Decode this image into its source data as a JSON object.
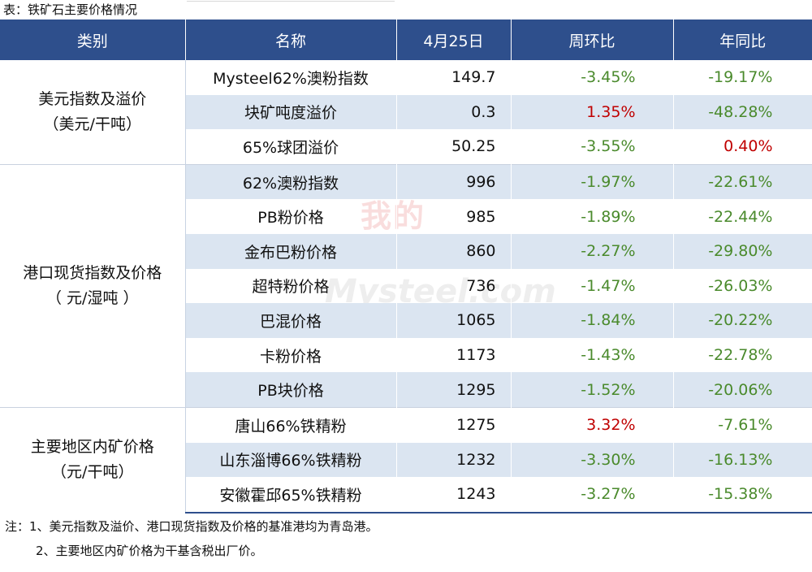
{
  "caption": "表：铁矿石主要价格情况",
  "headers": [
    "类别",
    "名称",
    "4月25日",
    "周环比",
    "年同比"
  ],
  "groups": [
    {
      "line1": "美元指数及溢价",
      "line2": "（美元/干吨）"
    },
    {
      "line1": "港口现货指数及价格",
      "line2": "（ 元/湿吨 ）"
    },
    {
      "line1": "主要地区内矿价格",
      "line2": "（元/干吨）"
    }
  ],
  "rows": [
    {
      "name": "Mysteel62%澳粉指数",
      "value": "149.7",
      "wow": "-3.45%",
      "yoy": "-19.17%"
    },
    {
      "name": "块矿吨度溢价",
      "value": "0.3",
      "wow": "1.35%",
      "yoy": "-48.28%"
    },
    {
      "name": "65%球团溢价",
      "value": "50.25",
      "wow": "-3.55%",
      "yoy": "0.40%"
    },
    {
      "name": "62%澳粉指数",
      "value": "996",
      "wow": "-1.97%",
      "yoy": "-22.61%"
    },
    {
      "name": "PB粉价格",
      "value": "985",
      "wow": "-1.89%",
      "yoy": "-22.44%"
    },
    {
      "name": "金布巴粉价格",
      "value": "860",
      "wow": "-2.27%",
      "yoy": "-29.80%"
    },
    {
      "name": "超特粉价格",
      "value": "736",
      "wow": "-1.47%",
      "yoy": "-26.03%"
    },
    {
      "name": "巴混价格",
      "value": "1065",
      "wow": "-1.84%",
      "yoy": "-20.22%"
    },
    {
      "name": "卡粉价格",
      "value": "1173",
      "wow": "-1.43%",
      "yoy": "-22.78%"
    },
    {
      "name": "PB块价格",
      "value": "1295",
      "wow": "-1.52%",
      "yoy": "-20.06%"
    },
    {
      "name": "唐山66%铁精粉",
      "value": "1275",
      "wow": "3.32%",
      "yoy": "-7.61%"
    },
    {
      "name": "山东淄博66%铁精粉",
      "value": "1232",
      "wow": "-3.30%",
      "yoy": "-16.13%"
    },
    {
      "name": "安徽霍邱65%铁精粉",
      "value": "1243",
      "wow": "-3.27%",
      "yoy": "-15.38%"
    }
  ],
  "watermark": {
    "cn": "我的钢铁",
    "en": "Mysteel.com"
  },
  "notes": {
    "line1": "注：1、美元指数及溢价、港口现货指数及价格的基准港均为青岛港。",
    "line2": "2、主要地区内矿价格为干基含税出厂价。"
  },
  "colors": {
    "header_bg": "#2e4f8c",
    "row_shade": "#dbe5f1",
    "negative": "#4a8a2c",
    "positive": "#c00000"
  }
}
